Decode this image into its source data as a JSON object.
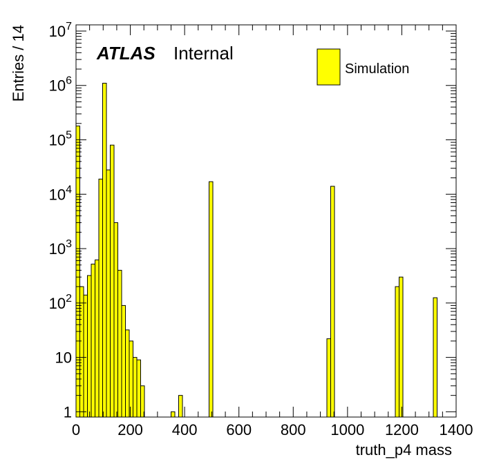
{
  "chart_data": {
    "type": "bar",
    "xlabel": "truth_p4 mass",
    "ylabel": "Entries / 14",
    "xlim": [
      0,
      1400
    ],
    "ylim": [
      0.8,
      13000000
    ],
    "y_scale": "log",
    "bin_width": 14,
    "x_ticks": [
      "0",
      "200",
      "400",
      "600",
      "800",
      "1000",
      "1200",
      "1400"
    ],
    "y_tick_labels": [
      "1",
      "10",
      "10^2",
      "10^3",
      "10^4",
      "10^5",
      "10^6",
      "10^7"
    ],
    "annotation": {
      "experiment": "ATLAS",
      "status": "Internal"
    },
    "legend": {
      "position": "top-right",
      "entries": [
        "Simulation"
      ]
    },
    "fill_color": "#ffff00",
    "line_color": "#000000",
    "series": [
      {
        "name": "Simulation",
        "bins": [
          {
            "x": 0,
            "value": 180000
          },
          {
            "x": 14,
            "value": 200
          },
          {
            "x": 28,
            "value": 140
          },
          {
            "x": 42,
            "value": 320
          },
          {
            "x": 56,
            "value": 520
          },
          {
            "x": 70,
            "value": 620
          },
          {
            "x": 84,
            "value": 19000
          },
          {
            "x": 98,
            "value": 1100000
          },
          {
            "x": 112,
            "value": 28000
          },
          {
            "x": 126,
            "value": 80000
          },
          {
            "x": 140,
            "value": 3000
          },
          {
            "x": 154,
            "value": 400
          },
          {
            "x": 168,
            "value": 90
          },
          {
            "x": 182,
            "value": 32
          },
          {
            "x": 196,
            "value": 20
          },
          {
            "x": 210,
            "value": 10
          },
          {
            "x": 224,
            "value": 9
          },
          {
            "x": 238,
            "value": 3
          },
          {
            "x": 350,
            "value": 1
          },
          {
            "x": 378,
            "value": 2
          },
          {
            "x": 490,
            "value": 17000
          },
          {
            "x": 924,
            "value": 22
          },
          {
            "x": 938,
            "value": 14000
          },
          {
            "x": 1176,
            "value": 200
          },
          {
            "x": 1190,
            "value": 300
          },
          {
            "x": 1316,
            "value": 125
          }
        ]
      }
    ]
  }
}
